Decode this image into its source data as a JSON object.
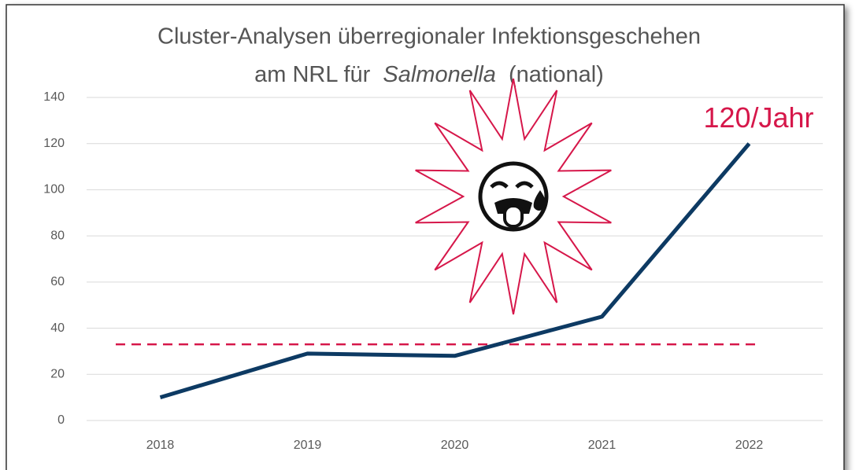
{
  "chart_data": {
    "type": "line",
    "title": {
      "line1": "Cluster-Analysen überregionaler Infektionsgeschehen",
      "line2": [
        {
          "text": "am NRL für"
        },
        {
          "text": "Salmonella",
          "italic": true
        },
        {
          "text": "(national)"
        }
      ]
    },
    "categories": [
      "2018",
      "2019",
      "2020",
      "2021",
      "2022"
    ],
    "series": [
      {
        "color": "#0d3a63",
        "values": [
          10,
          29,
          28,
          45,
          120
        ],
        "value_labels": [
          null,
          null,
          null,
          null,
          "120/Jahr"
        ]
      }
    ],
    "reference_line": {
      "value": 33,
      "color": "#d6174a",
      "dashed": true
    },
    "ylim": [
      0,
      140
    ],
    "yticks": [
      0,
      20,
      40,
      60,
      80,
      100,
      120,
      140
    ],
    "grid": true
  }
}
